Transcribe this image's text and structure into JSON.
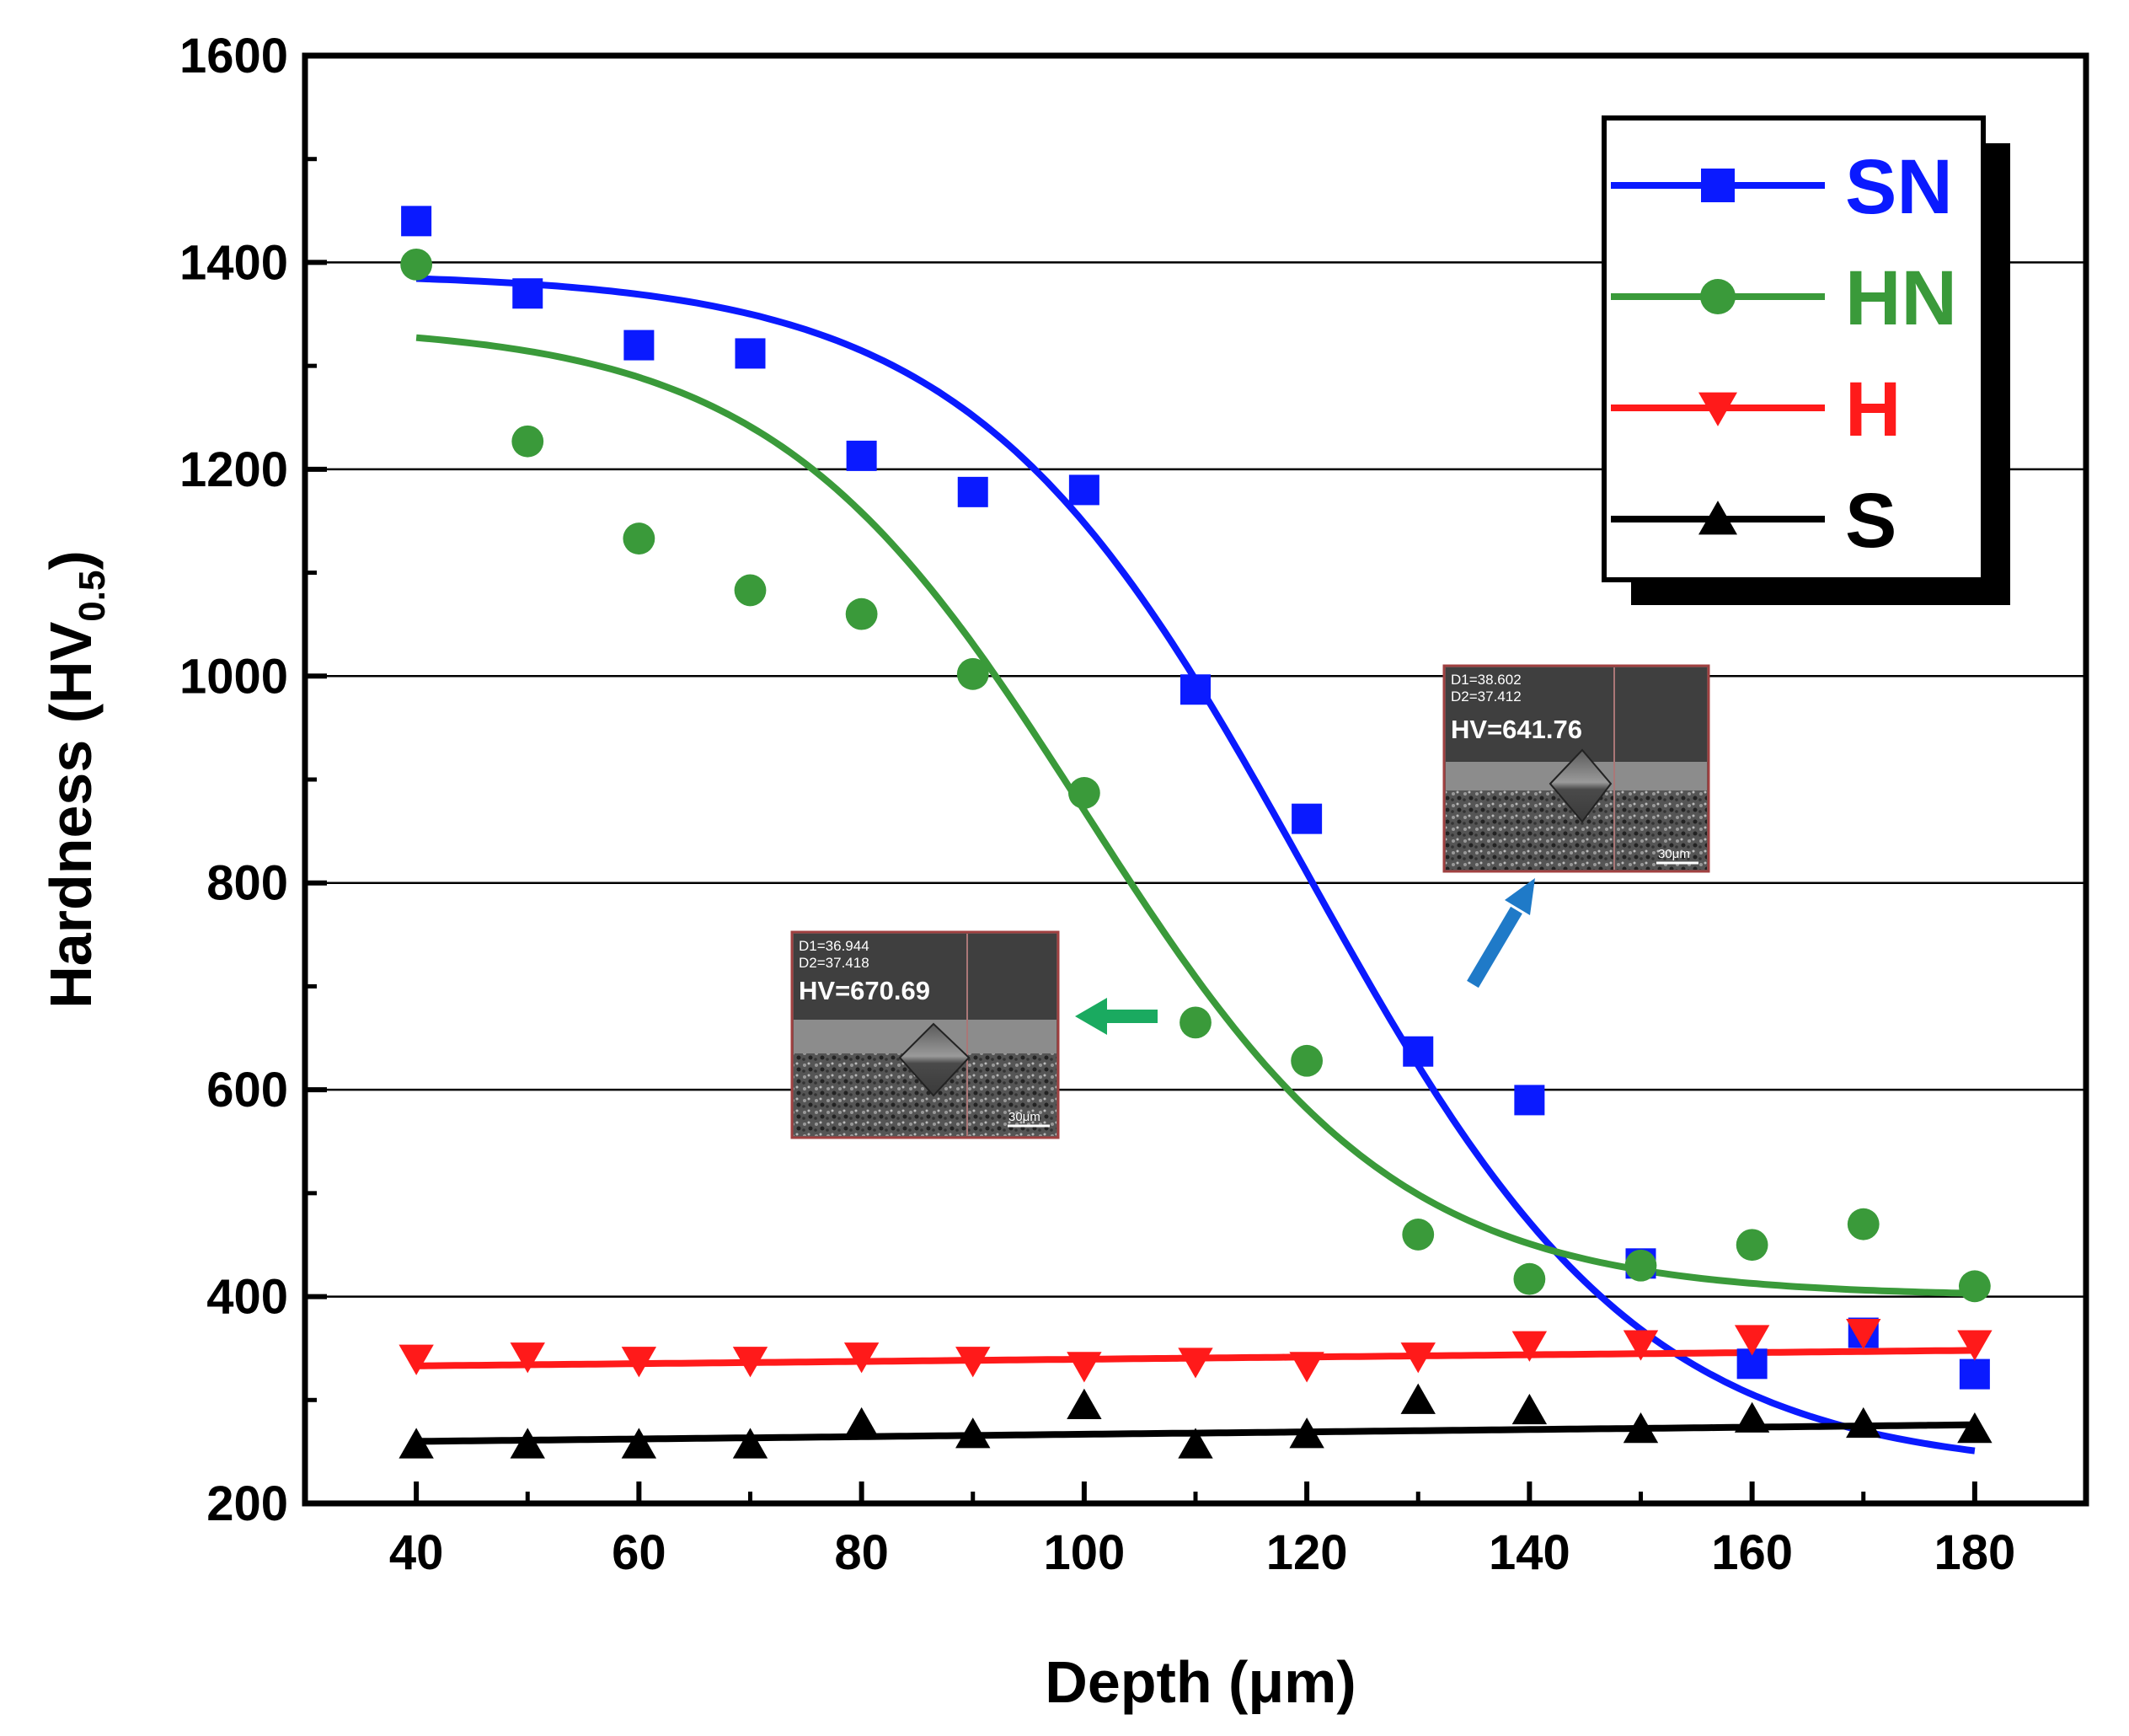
{
  "chart_data": {
    "type": "scatter",
    "title": "",
    "xlabel": "Depth (μm)",
    "ylabel_main": "Hardness (HV",
    "ylabel_sub": "0.5",
    "ylabel_close": ")",
    "xlim": [
      30,
      190
    ],
    "ylim": [
      200,
      1600
    ],
    "xticks": [
      40,
      60,
      80,
      100,
      120,
      140,
      160,
      180
    ],
    "yticks": [
      200,
      400,
      600,
      800,
      1000,
      1200,
      1400,
      1600
    ],
    "grid": "horizontal",
    "legend_position": "top-right",
    "x": [
      40,
      50,
      60,
      70,
      80,
      90,
      100,
      110,
      120,
      130,
      140,
      150,
      160,
      170,
      180
    ],
    "series": [
      {
        "name": "SN",
        "color": "#0a1aff",
        "marker": "square",
        "values": [
          1440,
          1370,
          1320,
          1312,
          1213,
          1178,
          1180,
          987,
          862,
          637,
          590,
          432,
          335,
          365,
          325
        ],
        "fit": {
          "type": "sigmoid",
          "top": 1390,
          "bottom": 230,
          "x0": 120,
          "k": 15
        }
      },
      {
        "name": "HN",
        "color": "#3a9a3a",
        "marker": "circle",
        "values": [
          1398,
          1227,
          1133,
          1083,
          1060,
          1002,
          887,
          665,
          628,
          460,
          417,
          430,
          450,
          470,
          410
        ],
        "fit": {
          "type": "sigmoid",
          "top": 1340,
          "bottom": 400,
          "x0": 100,
          "k": 14
        }
      },
      {
        "name": "H",
        "color": "#ff1a1a",
        "marker": "triangle-down",
        "values": [
          340,
          342,
          338,
          338,
          342,
          338,
          333,
          337,
          333,
          342,
          353,
          354,
          359,
          365,
          354
        ],
        "fit": {
          "type": "linear",
          "start": 333,
          "end": 348
        }
      },
      {
        "name": "S",
        "color": "#000000",
        "marker": "triangle-up",
        "values": [
          257,
          257,
          257,
          257,
          277,
          267,
          295,
          257,
          267,
          300,
          290,
          272,
          282,
          277,
          272
        ],
        "fit": {
          "type": "linear",
          "start": 260,
          "end": 276
        }
      }
    ],
    "insets": [
      {
        "id": "inset-1",
        "d1": "D1=36.944",
        "d2": "D2=37.418",
        "hv": "HV=670.69",
        "scale": "30μm"
      },
      {
        "id": "inset-2",
        "d1": "D1=38.602",
        "d2": "D2=37.412",
        "hv": "HV=641.76",
        "scale": "30μm"
      }
    ],
    "arrow_colors": {
      "green": "#1aaa60",
      "blue": "#1f7ac8"
    }
  }
}
